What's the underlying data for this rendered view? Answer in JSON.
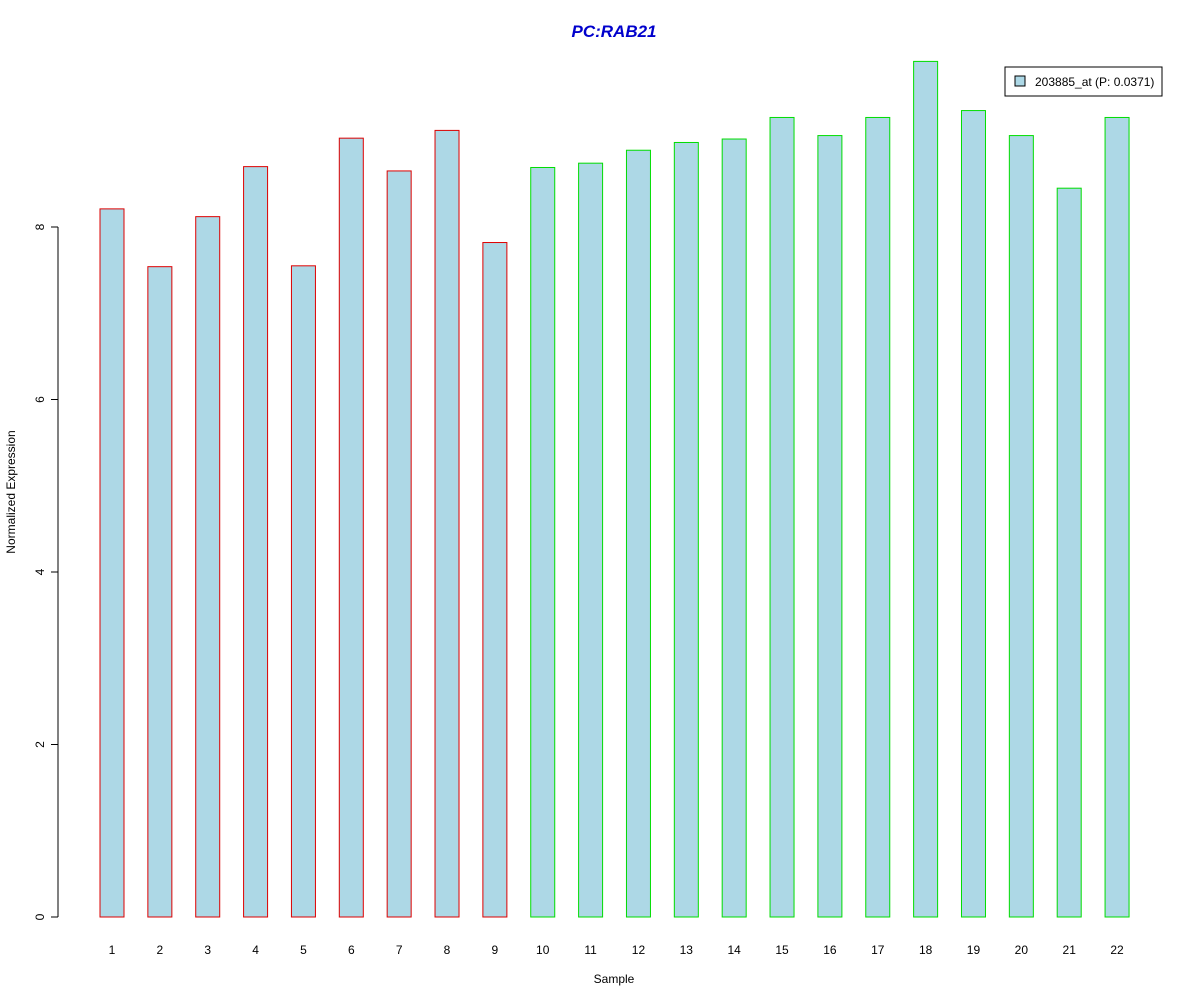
{
  "chart_data": {
    "type": "bar",
    "title": "PC:RAB21",
    "xlabel": "Sample",
    "ylabel": "Normalized Expression",
    "ylim": [
      0,
      10
    ],
    "yticks": [
      "0",
      "2",
      "4",
      "6",
      "8"
    ],
    "categories": [
      "1",
      "2",
      "3",
      "4",
      "5",
      "6",
      "7",
      "8",
      "9",
      "10",
      "11",
      "12",
      "13",
      "14",
      "15",
      "16",
      "17",
      "18",
      "19",
      "20",
      "21",
      "22"
    ],
    "series": [
      {
        "name": "203885_at (P: 0.0371)",
        "values": [
          8.21,
          7.54,
          8.12,
          8.7,
          7.55,
          9.03,
          8.65,
          9.12,
          7.82,
          8.69,
          8.74,
          8.89,
          8.98,
          9.02,
          9.27,
          9.06,
          9.27,
          9.92,
          9.35,
          9.06,
          8.45,
          9.27
        ]
      }
    ],
    "group_border_colors": [
      "#dd0000",
      "#dd0000",
      "#dd0000",
      "#dd0000",
      "#dd0000",
      "#dd0000",
      "#dd0000",
      "#dd0000",
      "#dd0000",
      "#00dd00",
      "#00dd00",
      "#00dd00",
      "#00dd00",
      "#00dd00",
      "#00dd00",
      "#00dd00",
      "#00dd00",
      "#00dd00",
      "#00dd00",
      "#00dd00",
      "#00dd00",
      "#00dd00"
    ],
    "bar_fill": "#add8e6",
    "title_color": "#0000cc",
    "grid": false,
    "legend_position": "top-right"
  }
}
